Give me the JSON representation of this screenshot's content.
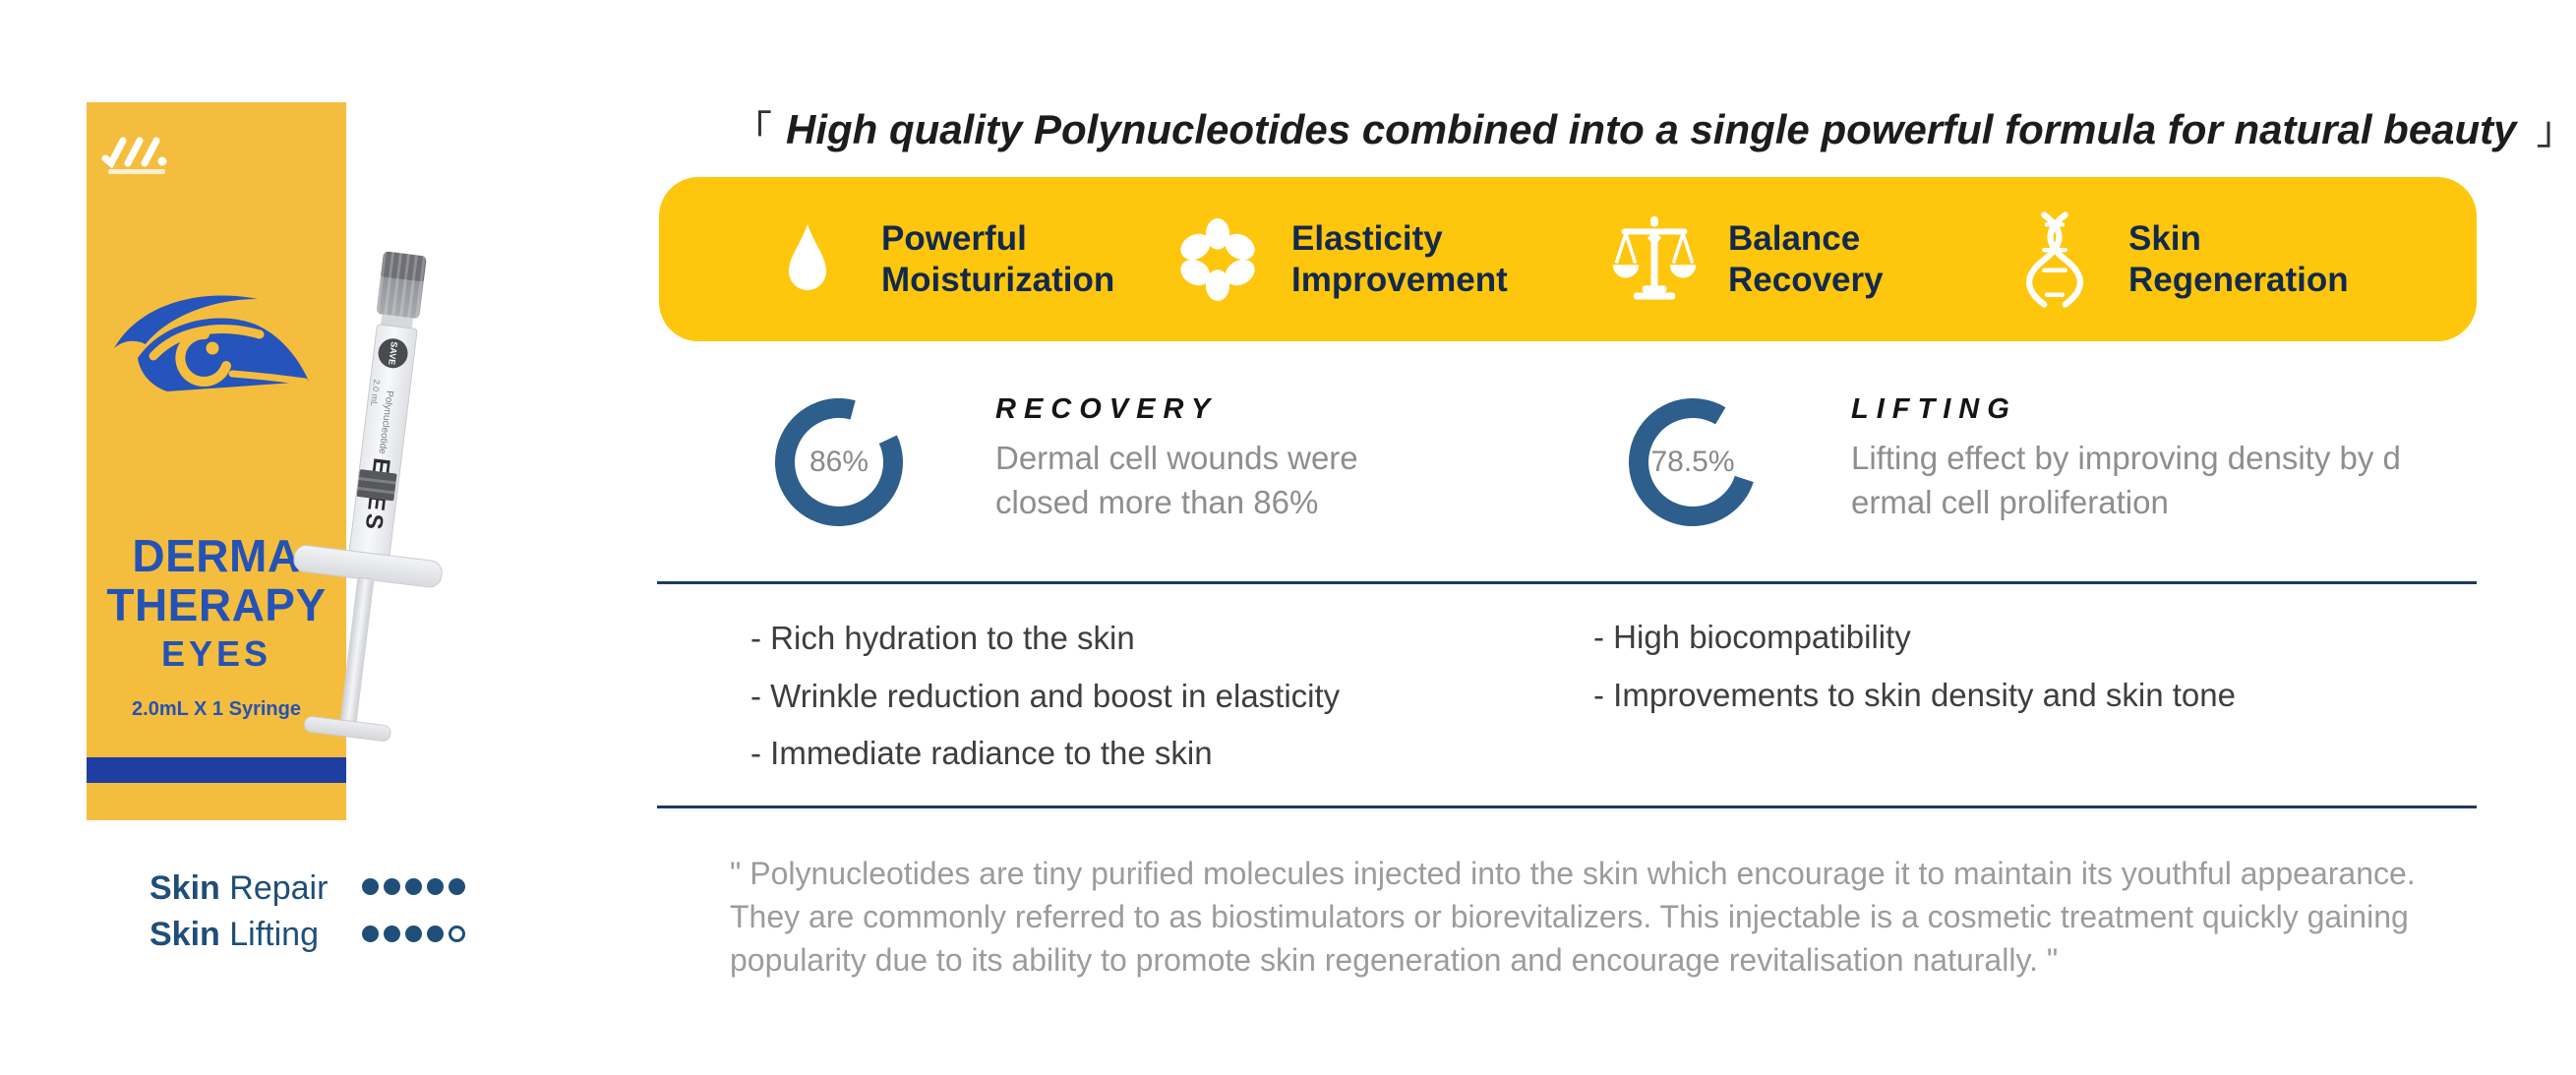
{
  "colors": {
    "banner_yellow": "#FFC60E",
    "box_yellow": "#F5BD3E",
    "brand_blue": "#2453B5",
    "box_bar_blue": "#1E3EA1",
    "ring_blue": "#2D5E8C",
    "rule_navy": "#1F3864",
    "banner_text_navy": "#13294B",
    "rating_navy": "#1F4E79",
    "desc_gray": "#8e8e8e",
    "quote_gray": "#9c9c9c"
  },
  "product_box": {
    "title_line1": "DERMA",
    "title_line2": "THERAPY",
    "subtitle": "EYES",
    "volume": "2.0mL X 1 Syringe"
  },
  "syringe": {
    "brand": "SAVE",
    "label_small": "Polynucleotide",
    "label_volume": "2.0 mL",
    "label_product": "EYES"
  },
  "ratings": [
    {
      "label_bold": "Skin",
      "label_rest": " Repair",
      "filled": 5,
      "total": 5
    },
    {
      "label_bold": "Skin",
      "label_rest": " Lifting",
      "filled": 4,
      "total": 5
    }
  ],
  "headline": {
    "open": "「",
    "text": "High quality Polynucleotides combined into a single powerful formula for natural beauty",
    "close": "」"
  },
  "features": [
    {
      "icon": "droplet-icon",
      "line1": "Powerful",
      "line2": "Moisturization"
    },
    {
      "icon": "flower-icon",
      "line1": "Elasticity",
      "line2": "Improvement"
    },
    {
      "icon": "scales-icon",
      "line1": "Balance",
      "line2": "Recovery"
    },
    {
      "icon": "dna-icon",
      "line1": "Skin",
      "line2": "Regeneration"
    }
  ],
  "stats": [
    {
      "value": 86,
      "percent": "86%",
      "title": "RECOVERY",
      "desc_line1": "Dermal cell wounds were",
      "desc_line2": "closed more than 86%"
    },
    {
      "value": 78.5,
      "percent": "78.5%",
      "title": "LIFTING",
      "desc_line1": "Lifting effect by improving density by d",
      "desc_line2": "ermal cell proliferation"
    }
  ],
  "benefits_left": [
    "- Rich hydration to the skin",
    "- Wrinkle reduction and boost in elasticity",
    "- Immediate radiance to the skin"
  ],
  "benefits_right": [
    "- High biocompatibility",
    "- Improvements to skin density and skin tone"
  ],
  "quote": {
    "line1": "\" Polynucleotides are tiny purified molecules injected into the skin which encourage it to maintain its youthful appearance.",
    "line2": "They are commonly referred to as biostimulators or biorevitalizers. This injectable is a cosmetic treatment quickly gaining",
    "line3": "popularity due to its ability to promote skin regeneration and encourage revitalisation naturally. \""
  },
  "chart_data": {
    "type": "pie",
    "note": "two donut gauges",
    "gauges": [
      {
        "label": "RECOVERY",
        "value": 86,
        "display": "86%"
      },
      {
        "label": "LIFTING",
        "value": 78.5,
        "display": "78.5%"
      }
    ],
    "color": "#2D5E8C"
  }
}
